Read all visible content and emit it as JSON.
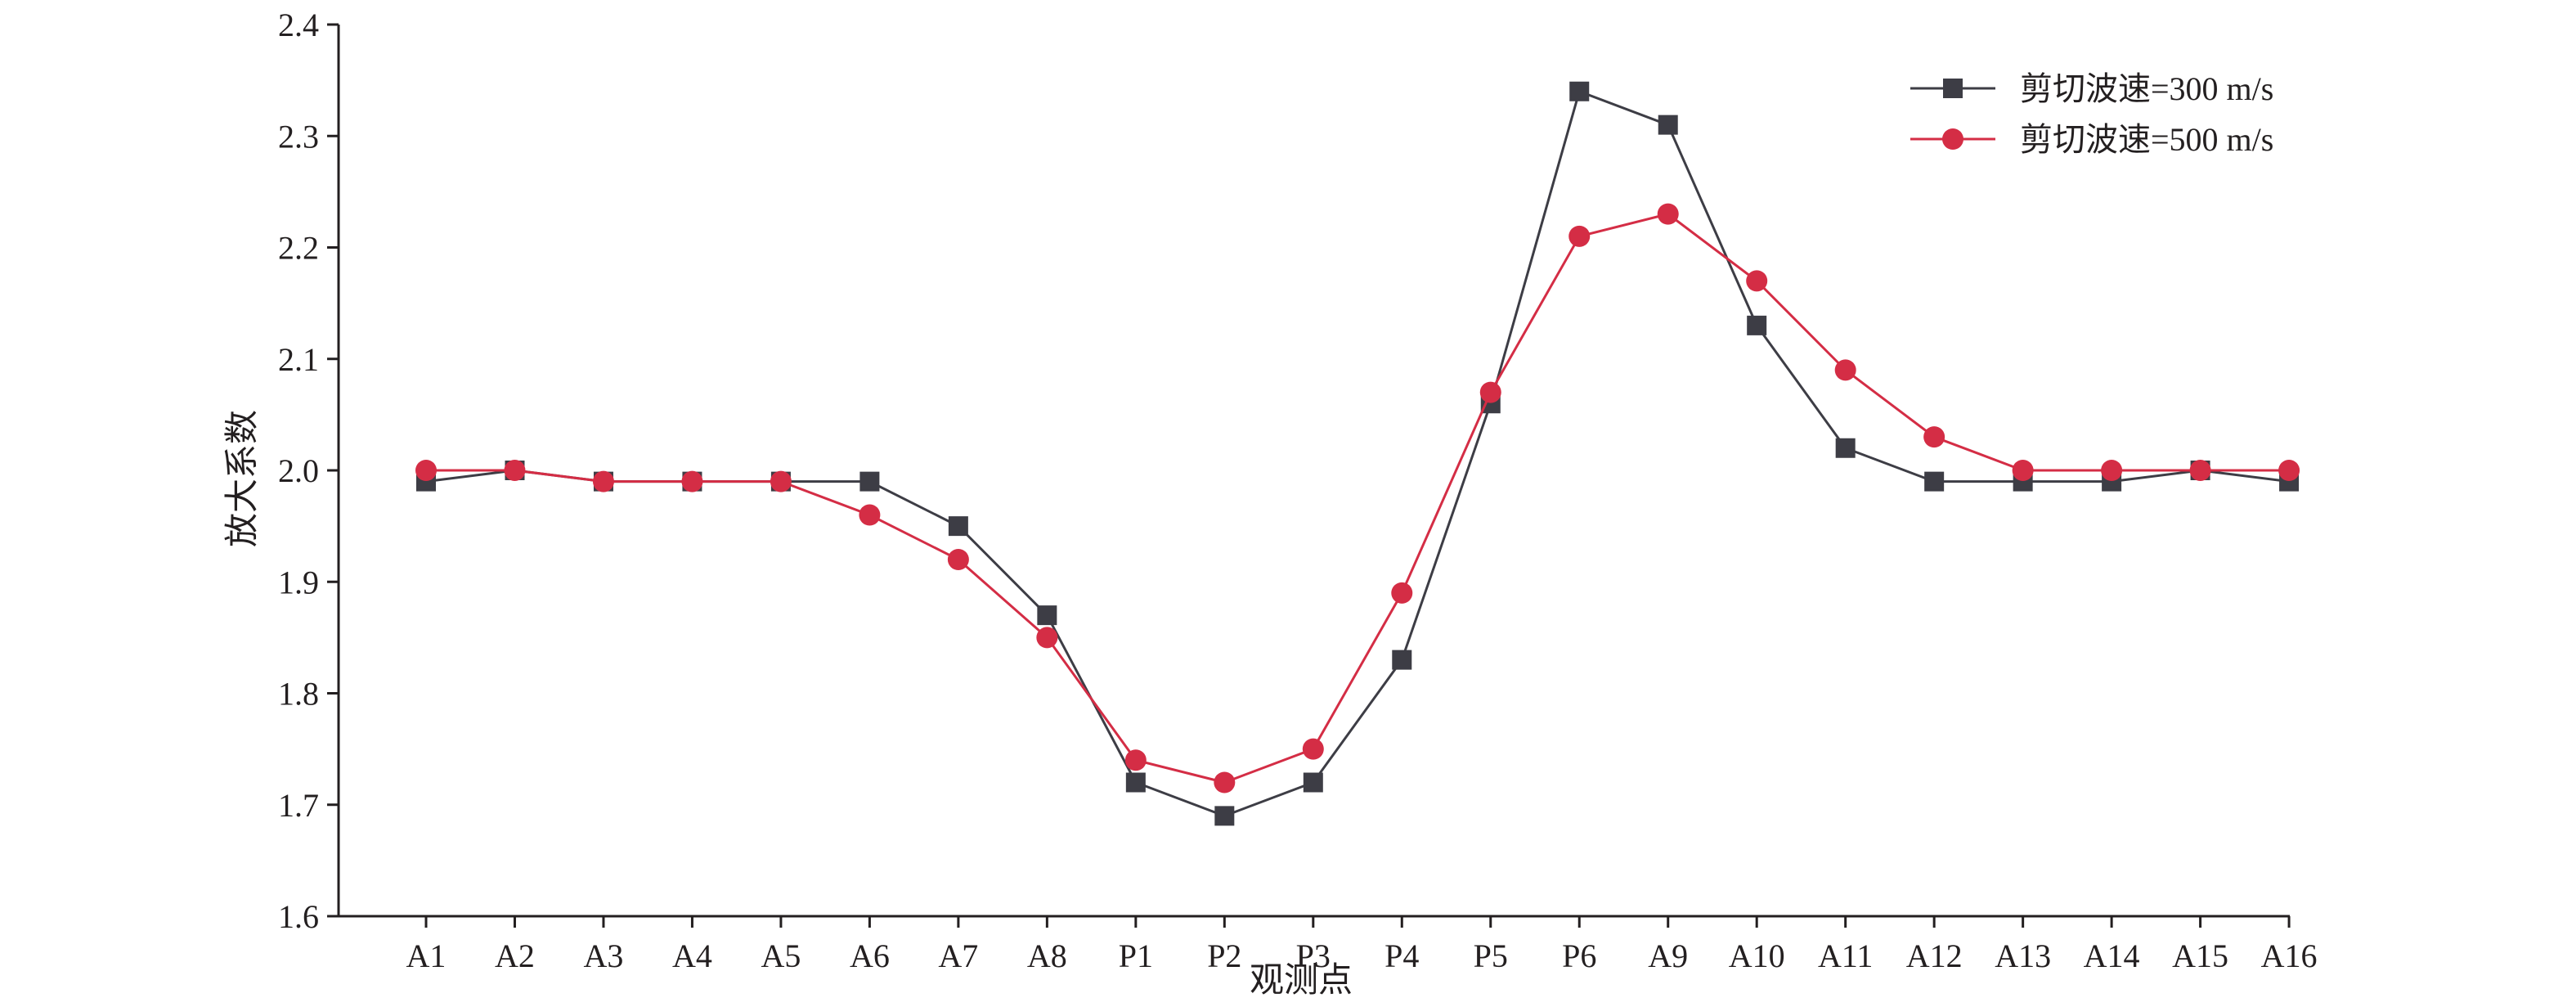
{
  "chart_data": {
    "type": "line",
    "title": "",
    "xlabel": "观测点",
    "ylabel": "放大系数",
    "ylim": [
      1.6,
      2.4
    ],
    "yticks": [
      "1.6",
      "1.7",
      "1.8",
      "1.9",
      "2.0",
      "2.1",
      "2.2",
      "2.3",
      "2.4"
    ],
    "categories": [
      "A1",
      "A2",
      "A3",
      "A4",
      "A5",
      "A6",
      "A7",
      "A8",
      "P1",
      "P2",
      "P3",
      "P4",
      "P5",
      "P6",
      "A9",
      "A10",
      "A11",
      "A12",
      "A13",
      "A14",
      "A15",
      "A16"
    ],
    "grid": false,
    "legend_position": "top-right",
    "series": [
      {
        "name": "剪切波速=300 m/s",
        "color": "#3d3d45",
        "marker": "square",
        "values": [
          1.99,
          2.0,
          1.99,
          1.99,
          1.99,
          1.99,
          1.95,
          1.87,
          1.72,
          1.69,
          1.72,
          1.83,
          2.06,
          2.34,
          2.31,
          2.13,
          2.02,
          1.99,
          1.99,
          1.99,
          2.0,
          1.99
        ]
      },
      {
        "name": "剪切波速=500 m/s",
        "color": "#d42d45",
        "marker": "circle",
        "values": [
          2.0,
          2.0,
          1.99,
          1.99,
          1.99,
          1.96,
          1.92,
          1.85,
          1.74,
          1.72,
          1.75,
          1.89,
          2.07,
          2.21,
          2.23,
          2.17,
          2.09,
          2.03,
          2.0,
          2.0,
          2.0,
          2.0
        ]
      }
    ]
  }
}
